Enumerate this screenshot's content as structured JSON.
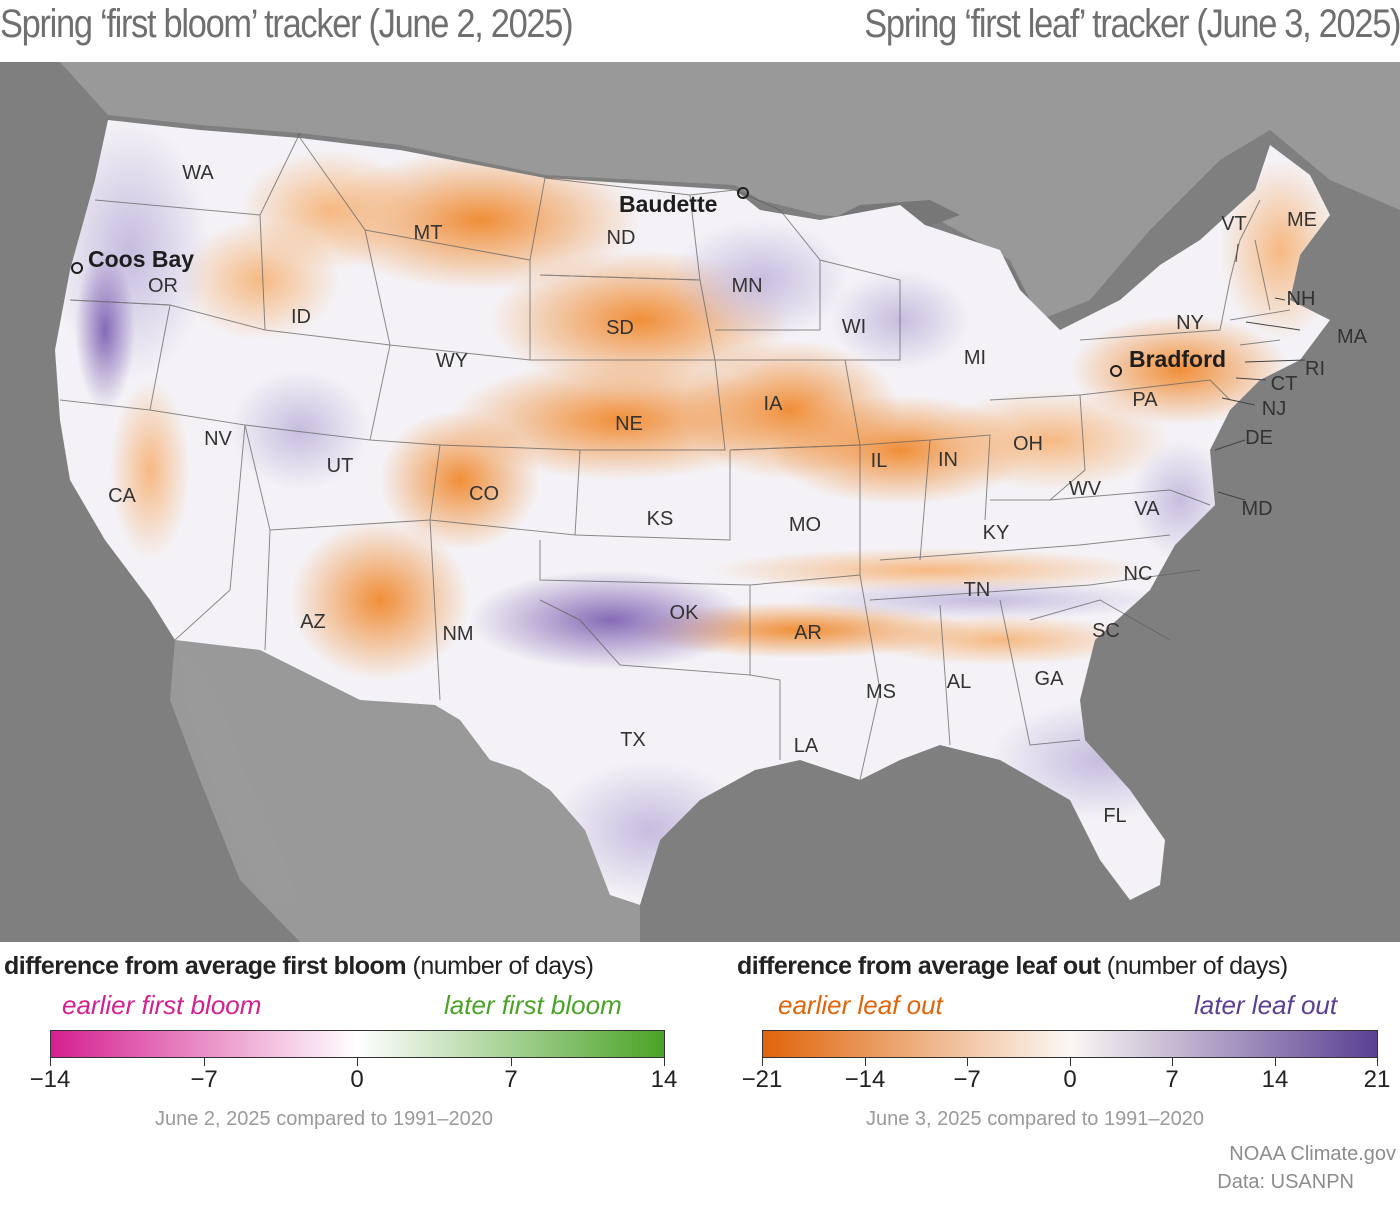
{
  "titles": {
    "left": "Spring ‘first bloom’ tracker (June 2, 2025)",
    "right": "Spring ‘first leaf’ tracker (June 3, 2025)"
  },
  "map": {
    "colors": {
      "background": "#7d7d7d",
      "land_other": "#9c9c9c",
      "water": "#747474",
      "earlier": "#e8731c",
      "later": "#6a4ba0",
      "neutral": "#f5f3f5"
    },
    "states": [
      {
        "abbr": "WA"
      },
      {
        "abbr": "OR"
      },
      {
        "abbr": "CA"
      },
      {
        "abbr": "ID"
      },
      {
        "abbr": "NV"
      },
      {
        "abbr": "MT"
      },
      {
        "abbr": "WY"
      },
      {
        "abbr": "UT"
      },
      {
        "abbr": "AZ"
      },
      {
        "abbr": "CO"
      },
      {
        "abbr": "NM"
      },
      {
        "abbr": "ND"
      },
      {
        "abbr": "SD"
      },
      {
        "abbr": "NE"
      },
      {
        "abbr": "KS"
      },
      {
        "abbr": "OK"
      },
      {
        "abbr": "TX"
      },
      {
        "abbr": "MN"
      },
      {
        "abbr": "IA"
      },
      {
        "abbr": "MO"
      },
      {
        "abbr": "AR"
      },
      {
        "abbr": "LA"
      },
      {
        "abbr": "WI"
      },
      {
        "abbr": "IL"
      },
      {
        "abbr": "MI"
      },
      {
        "abbr": "IN"
      },
      {
        "abbr": "OH"
      },
      {
        "abbr": "KY"
      },
      {
        "abbr": "TN"
      },
      {
        "abbr": "MS"
      },
      {
        "abbr": "AL"
      },
      {
        "abbr": "GA"
      },
      {
        "abbr": "FL"
      },
      {
        "abbr": "SC"
      },
      {
        "abbr": "NC"
      },
      {
        "abbr": "VA"
      },
      {
        "abbr": "WV"
      },
      {
        "abbr": "PA"
      },
      {
        "abbr": "NY"
      },
      {
        "abbr": "VT"
      },
      {
        "abbr": "ME"
      },
      {
        "abbr": "NH"
      },
      {
        "abbr": "MA"
      },
      {
        "abbr": "RI"
      },
      {
        "abbr": "CT"
      },
      {
        "abbr": "NJ"
      },
      {
        "abbr": "DE"
      },
      {
        "abbr": "MD"
      }
    ],
    "cities": [
      {
        "name": "Baudette"
      },
      {
        "name": "Coos Bay"
      },
      {
        "name": "Bradford"
      }
    ]
  },
  "legend_bloom": {
    "heading_bold": "difference from average first bloom",
    "heading_unit": "(number of days)",
    "left_label": "earlier first bloom",
    "right_label": "later first bloom",
    "left_color": "#d4208f",
    "right_color": "#4aa327",
    "ticks": [
      "−14",
      "−7",
      "0",
      "7",
      "14"
    ],
    "comparison": "June 2, 2025 compared to 1991–2020"
  },
  "legend_leaf": {
    "heading_bold": "difference from average leaf out",
    "heading_unit": "(number of days)",
    "left_label": "earlier leaf out",
    "right_label": "later leaf out",
    "left_color": "#e0650a",
    "right_color": "#5b3f93",
    "ticks": [
      "−21",
      "−14",
      "−7",
      "0",
      "7",
      "14",
      "21"
    ],
    "comparison": "June 3, 2025 compared to 1991–2020"
  },
  "credits": {
    "source": "NOAA Climate.gov",
    "data": "Data: USANPN"
  }
}
